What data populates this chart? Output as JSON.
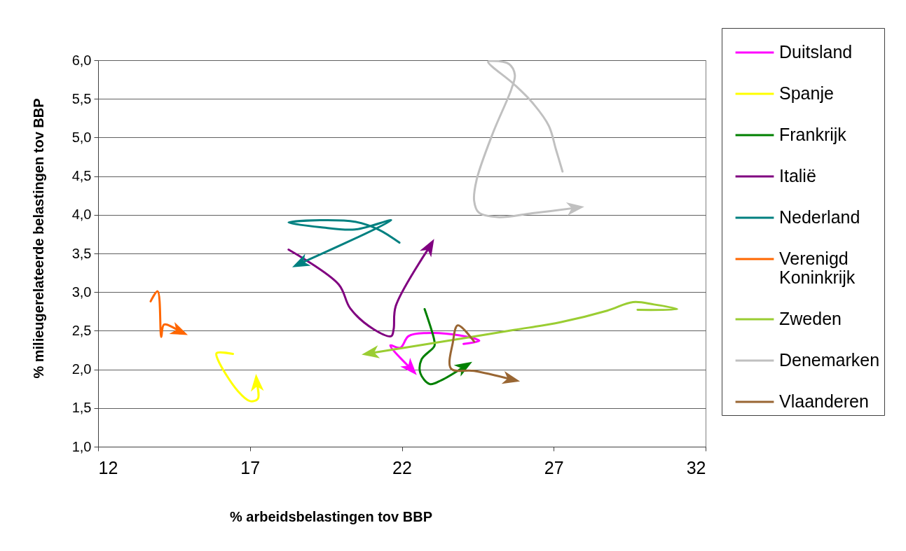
{
  "chart_data": {
    "type": "line",
    "xlabel": "% arbeidsbelastingen tov BBP",
    "ylabel": "% milieugerelateerde belastingen tov BBP",
    "xlim": [
      12,
      32
    ],
    "xticks": [
      12,
      17,
      22,
      27,
      32
    ],
    "ylim": [
      1,
      6
    ],
    "yticks": [
      {
        "value": 1,
        "label": "1,0"
      },
      {
        "value": 1.5,
        "label": "1,5"
      },
      {
        "value": 2,
        "label": "2,0"
      },
      {
        "value": 2.5,
        "label": "2,5"
      },
      {
        "value": 3,
        "label": "3,0"
      },
      {
        "value": 3.5,
        "label": "3,5"
      },
      {
        "value": 4,
        "label": "4,0"
      },
      {
        "value": 4.5,
        "label": "4,5"
      },
      {
        "value": 5,
        "label": "5,0"
      },
      {
        "value": 5.5,
        "label": "5,5"
      },
      {
        "value": 6,
        "label": "6,0"
      }
    ],
    "grid": "y",
    "legend": "right",
    "marker": "none",
    "series": [
      {
        "name": "Duitsland",
        "color": "#ff00ff",
        "x": [
          24.03,
          24.55,
          23.9,
          22.8,
          22.22,
          21.95,
          21.62,
          22.3
        ],
        "values": [
          2.33,
          2.37,
          2.44,
          2.47,
          2.43,
          2.28,
          2.31,
          2.01
        ]
      },
      {
        "name": "Spanje",
        "color": "#ffff00",
        "x": [
          16.44,
          15.9,
          15.95,
          16.6,
          17.0,
          17.26,
          17.22
        ],
        "values": [
          2.2,
          2.21,
          2.12,
          1.72,
          1.59,
          1.62,
          1.83
        ]
      },
      {
        "name": "Frankrijk",
        "color": "#008000",
        "x": [
          22.75,
          23.07,
          23.07,
          22.65,
          22.61,
          22.92,
          23.3,
          24.07
        ],
        "values": [
          2.78,
          2.37,
          2.3,
          2.13,
          1.95,
          1.81,
          1.86,
          2.04
        ]
      },
      {
        "name": "Italië",
        "color": "#800080",
        "x": [
          18.27,
          19.92,
          20.3,
          21.07,
          21.65,
          21.73,
          21.8,
          22.92
        ],
        "values": [
          3.55,
          3.1,
          2.79,
          2.52,
          2.43,
          2.52,
          2.82,
          3.59
        ]
      },
      {
        "name": "Nederland",
        "color": "#008080",
        "x": [
          21.92,
          21.23,
          20.46,
          19.31,
          18.27,
          19.31,
          20.46,
          21.65,
          18.65
        ],
        "values": [
          3.64,
          3.81,
          3.91,
          3.93,
          3.9,
          3.84,
          3.81,
          3.93,
          3.37
        ]
      },
      {
        "name": "Verenigd Koninkrijk",
        "color": "#ff6600",
        "x": [
          13.73,
          13.96,
          14.08,
          14.17,
          14.69
        ],
        "values": [
          2.88,
          3.01,
          2.42,
          2.58,
          2.49
        ]
      },
      {
        "name": "Zweden",
        "color": "#9acd32",
        "x": [
          29.76,
          31.07,
          30.3,
          29.61,
          28.76,
          27.22,
          25.69,
          24.15,
          20.96
        ],
        "values": [
          2.77,
          2.78,
          2.84,
          2.87,
          2.76,
          2.61,
          2.51,
          2.41,
          2.21
        ]
      },
      {
        "name": "Denemarken",
        "color": "#c0c0c0",
        "x": [
          27.29,
          27.07,
          26.84,
          26.3,
          25.69,
          24.84,
          25.0,
          25.53,
          25.72,
          25.61,
          25.0,
          24.46,
          24.38,
          24.53,
          25.15,
          26.3,
          27.72
        ],
        "values": [
          4.56,
          4.85,
          5.15,
          5.45,
          5.69,
          5.98,
          5.99,
          5.95,
          5.81,
          5.63,
          5.06,
          4.45,
          4.18,
          4.03,
          3.97,
          4.02,
          4.09
        ]
      },
      {
        "name": "Vlaanderen",
        "color": "#996633",
        "x": [
          24.38,
          23.84,
          23.68,
          23.62,
          24.38,
          25.61
        ],
        "values": [
          2.36,
          2.57,
          2.35,
          2.01,
          1.98,
          1.87
        ]
      }
    ]
  }
}
